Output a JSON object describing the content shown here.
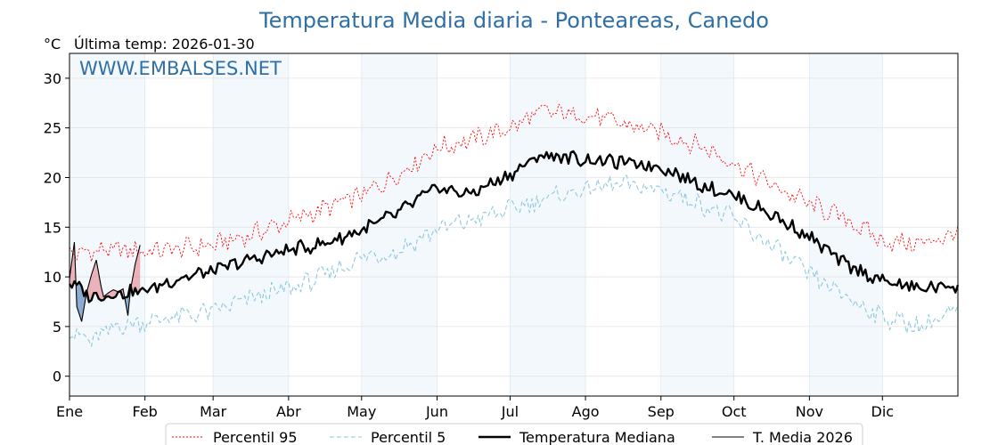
{
  "chart_data": {
    "type": "line",
    "title": "Temperatura Media diaria - Ponteareas, Canedo",
    "ylabel": "°C",
    "last_temp_label": "Última temp: 2026-01-30",
    "watermark": "WWW.EMBALSES.NET",
    "ylim": [
      -2,
      32.5
    ],
    "xlim": [
      1,
      366
    ],
    "yticks": [
      0,
      5,
      10,
      15,
      20,
      25,
      30
    ],
    "months": [
      {
        "label": "Ene",
        "start": 1
      },
      {
        "label": "Feb",
        "start": 32
      },
      {
        "label": "Mar",
        "start": 60
      },
      {
        "label": "Abr",
        "start": 91
      },
      {
        "label": "May",
        "start": 121
      },
      {
        "label": "Jun",
        "start": 152
      },
      {
        "label": "Jul",
        "start": 182
      },
      {
        "label": "Ago",
        "start": 213
      },
      {
        "label": "Sep",
        "start": 244
      },
      {
        "label": "Oct",
        "start": 274
      },
      {
        "label": "Nov",
        "start": 305
      },
      {
        "label": "Dic",
        "start": 335
      }
    ],
    "shaded_months": [
      "Ene",
      "Mar",
      "May",
      "Jul",
      "Sep",
      "Nov"
    ],
    "series": [
      {
        "name": "Percentil 95",
        "color": "#ff0000",
        "style": "dotted",
        "x": [
          1,
          15,
          32,
          45,
          60,
          75,
          91,
          105,
          121,
          135,
          152,
          165,
          182,
          195,
          213,
          225,
          244,
          260,
          274,
          290,
          305,
          320,
          335,
          350,
          366
        ],
        "y": [
          12.3,
          12.7,
          12.6,
          12.8,
          13.2,
          14.2,
          15.6,
          16.8,
          18.2,
          20.2,
          23.0,
          23.7,
          25.0,
          26.6,
          26.3,
          25.6,
          24.5,
          23.2,
          21.5,
          19.2,
          17.3,
          15.8,
          13.6,
          13.3,
          14.4
        ]
      },
      {
        "name": "Percentil 5",
        "color": "#8cc8dc",
        "style": "dashed",
        "x": [
          1,
          10,
          20,
          32,
          45,
          60,
          75,
          91,
          105,
          121,
          135,
          152,
          165,
          182,
          195,
          213,
          225,
          244,
          260,
          274,
          290,
          305,
          320,
          335,
          350,
          366
        ],
        "y": [
          4.5,
          3.5,
          5.0,
          5.5,
          6.0,
          6.5,
          7.8,
          8.8,
          10.0,
          12.0,
          12.5,
          14.8,
          15.6,
          16.8,
          17.8,
          18.8,
          19.3,
          18.8,
          17.4,
          15.8,
          13.0,
          10.2,
          8.0,
          6.0,
          5.0,
          6.5
        ]
      },
      {
        "name": "Temperatura Mediana",
        "color": "#000000",
        "style": "solid-thick",
        "x": [
          1,
          10,
          20,
          32,
          45,
          60,
          75,
          91,
          105,
          121,
          135,
          152,
          165,
          182,
          195,
          213,
          225,
          244,
          260,
          274,
          290,
          305,
          320,
          335,
          350,
          366
        ],
        "y": [
          9.5,
          8.0,
          8.3,
          8.6,
          9.8,
          10.6,
          11.7,
          12.7,
          13.3,
          14.7,
          16.3,
          19.0,
          18.3,
          20.3,
          22.3,
          21.8,
          21.6,
          21.1,
          19.3,
          18.2,
          16.2,
          14.0,
          11.2,
          9.6,
          8.8,
          9.2
        ]
      },
      {
        "name": "T. Media 2026",
        "color": "#000000",
        "style": "solid-thin",
        "x": [
          1,
          3,
          4,
          6,
          8,
          10,
          12,
          14,
          15,
          17,
          19,
          21,
          23,
          25,
          26,
          28,
          30
        ],
        "y": [
          9.8,
          13.5,
          7.0,
          5.5,
          8.4,
          10.2,
          11.7,
          9.0,
          8.0,
          8.4,
          8.7,
          8.5,
          8.8,
          6.1,
          8.6,
          11.3,
          13.2
        ]
      }
    ],
    "legend": [
      "Percentil 95",
      "Percentil 5",
      "Temperatura Mediana",
      "T. Media 2026"
    ],
    "legend_position": "bottom-center"
  }
}
